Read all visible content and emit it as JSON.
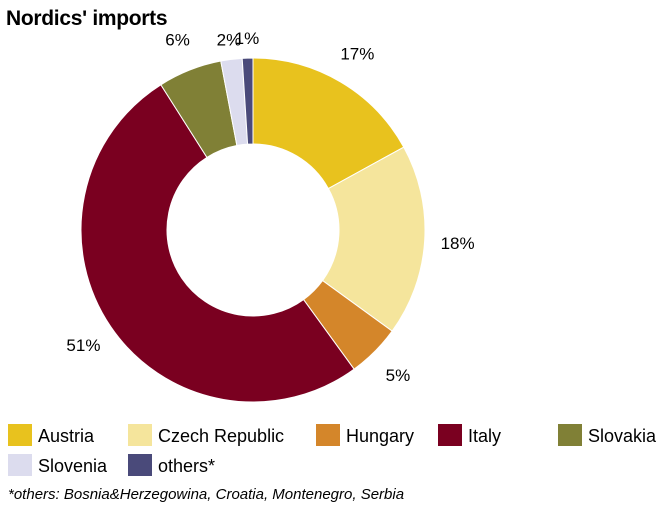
{
  "chart_data": {
    "type": "pie",
    "variant": "donut",
    "title": "Nordics' imports",
    "slices": [
      {
        "label": "Austria",
        "value": 17,
        "label_text": "17%",
        "color": "#e8c21e"
      },
      {
        "label": "Czech Republic",
        "value": 18,
        "label_text": "18%",
        "color": "#f5e59c"
      },
      {
        "label": "Hungary",
        "value": 5,
        "label_text": "5%",
        "color": "#d4862a"
      },
      {
        "label": "Italy",
        "value": 51,
        "label_text": "51%",
        "color": "#7a0020"
      },
      {
        "label": "Slovakia",
        "value": 6,
        "label_text": "6%",
        "color": "#808036"
      },
      {
        "label": "Slovenia",
        "value": 2,
        "label_text": "2%",
        "color": "#dcdcee"
      },
      {
        "label": "others*",
        "value": 1,
        "label_text": "1%",
        "color": "#4a4a7a"
      }
    ],
    "legend_placement": "bottom",
    "footnote": "*others: Bosnia&Herzegowina, Croatia, Montenegro, Serbia"
  }
}
